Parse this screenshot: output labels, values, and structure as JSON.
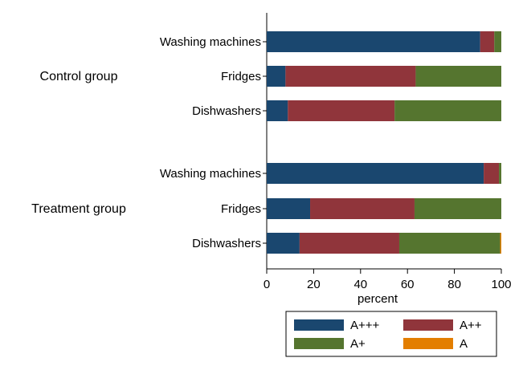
{
  "chart_data": {
    "type": "bar",
    "orientation": "horizontal",
    "stacked": true,
    "xlabel": "percent",
    "xlim": [
      0,
      100
    ],
    "xticks": [
      0,
      20,
      40,
      60,
      80,
      100
    ],
    "grid": false,
    "legend_position": "bottom",
    "groups": [
      {
        "label": "Control group",
        "categories": [
          "Washing machines",
          "Fridges",
          "Dishwashers"
        ]
      },
      {
        "label": "Treatment group",
        "categories": [
          "Washing machines",
          "Fridges",
          "Dishwashers"
        ]
      }
    ],
    "series": [
      {
        "name": "A+++",
        "color": "#1a476f",
        "values": [
          91,
          8,
          9,
          92.5,
          18.5,
          14
        ]
      },
      {
        "name": "A++",
        "color": "#90353b",
        "values": [
          6,
          55.5,
          45.5,
          6.5,
          44.5,
          42.5
        ]
      },
      {
        "name": "A+",
        "color": "#55752f",
        "values": [
          3,
          36.5,
          45.5,
          1,
          37,
          43
        ]
      },
      {
        "name": "A",
        "color": "#e37e00",
        "values": [
          0,
          0,
          0,
          0,
          0,
          0.5
        ]
      }
    ]
  }
}
